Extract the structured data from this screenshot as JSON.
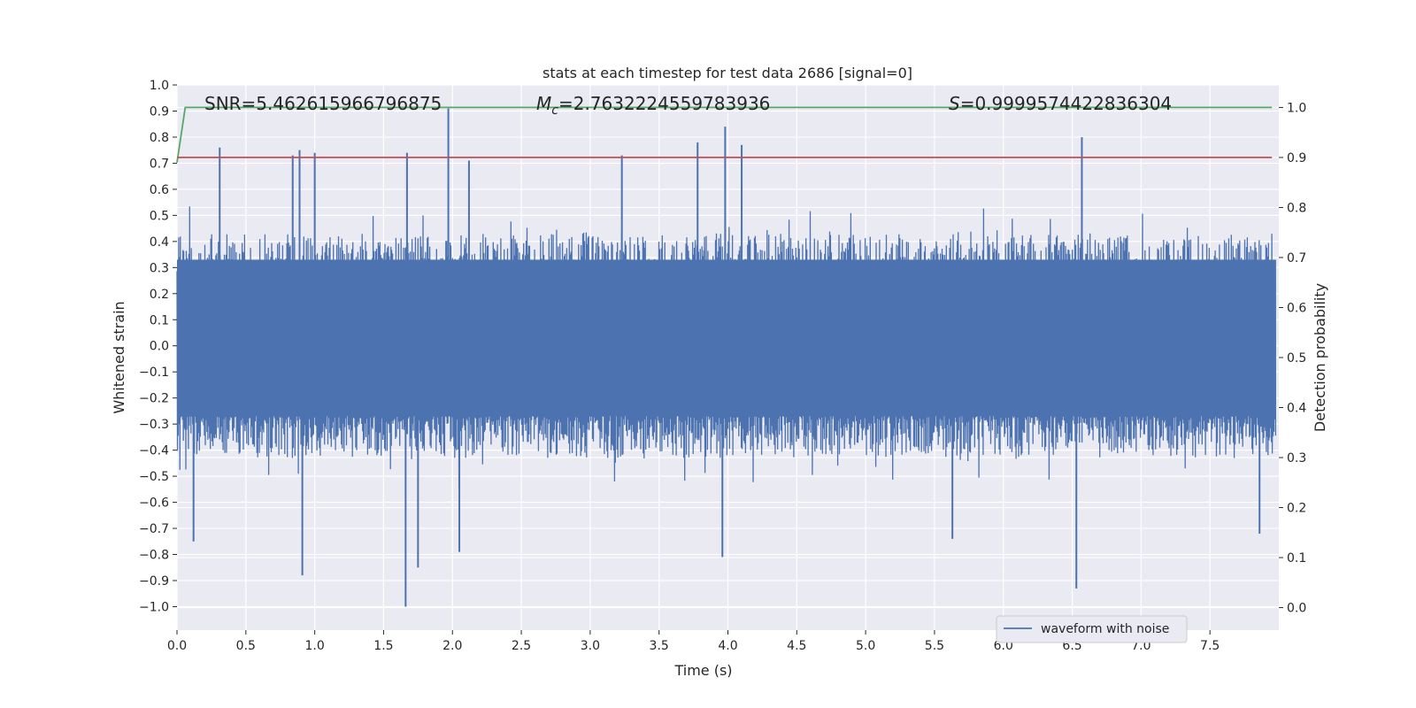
{
  "chart_data": {
    "type": "line",
    "title": "stats at each timestep for test data 2686 [signal=0]",
    "xlabel": "Time (s)",
    "ylabel": "Whitened strain",
    "y2label": "Detection probability",
    "xlim": [
      0.0,
      8.0
    ],
    "ylim": [
      -1.09,
      1.0
    ],
    "y2lim": [
      -0.045,
      1.045
    ],
    "x_ticks": [
      0.0,
      0.5,
      1.0,
      1.5,
      2.0,
      2.5,
      3.0,
      3.5,
      4.0,
      4.5,
      5.0,
      5.5,
      6.0,
      6.5,
      7.0,
      7.5
    ],
    "x_tick_labels": [
      "0.0",
      "0.5",
      "1.0",
      "1.5",
      "2.0",
      "2.5",
      "3.0",
      "3.5",
      "4.0",
      "4.5",
      "5.0",
      "5.5",
      "6.0",
      "6.5",
      "7.0",
      "7.5"
    ],
    "y_ticks": [
      1.0,
      0.9,
      0.8,
      0.7,
      0.6,
      0.5,
      0.4,
      0.3,
      0.2,
      0.1,
      0.0,
      -0.1,
      -0.2,
      -0.3,
      -0.4,
      -0.5,
      -0.6,
      -0.7,
      -0.8,
      -0.9,
      -1.0
    ],
    "y_tick_labels": [
      "1.0",
      "0.9",
      "0.8",
      "0.7",
      "0.6",
      "0.5",
      "0.4",
      "0.3",
      "0.2",
      "0.1",
      "0.0",
      "−0.1",
      "−0.2",
      "−0.3",
      "−0.4",
      "−0.5",
      "−0.6",
      "−0.7",
      "−0.8",
      "−0.9",
      "−1.0"
    ],
    "y2_ticks": [
      1.0,
      0.9,
      0.8,
      0.7,
      0.6,
      0.5,
      0.4,
      0.3,
      0.2,
      0.1,
      0.0
    ],
    "y2_tick_labels": [
      "1.0",
      "0.9",
      "0.8",
      "0.7",
      "0.6",
      "0.5",
      "0.4",
      "0.3",
      "0.2",
      "0.1",
      "0.0"
    ],
    "grid": true,
    "annotations": {
      "snr": "SNR=5.462615966796875",
      "mc_symbol": "M",
      "mc_sub": "c",
      "mc_value": "=2.7632224559783936",
      "s_symbol": "S",
      "s_value": "=0.9999574422836304"
    },
    "legend": {
      "label": "waveform with noise",
      "loc": "lower-right"
    },
    "series": [
      {
        "name": "waveform with noise",
        "axis": "left",
        "color": "#4c72b0",
        "kind": "noise",
        "core_band": [
          -0.23,
          0.33
        ],
        "typical_peaks": [
          0.45,
          -0.45
        ],
        "spikes": [
          {
            "x": 0.31,
            "y": 0.76
          },
          {
            "x": 0.84,
            "y": 0.73
          },
          {
            "x": 0.89,
            "y": 0.75
          },
          {
            "x": 1.0,
            "y": 0.74
          },
          {
            "x": 1.67,
            "y": 0.74
          },
          {
            "x": 1.97,
            "y": 0.91
          },
          {
            "x": 2.12,
            "y": 0.71
          },
          {
            "x": 3.23,
            "y": 0.73
          },
          {
            "x": 3.78,
            "y": 0.78
          },
          {
            "x": 3.98,
            "y": 0.84
          },
          {
            "x": 4.1,
            "y": 0.77
          },
          {
            "x": 6.57,
            "y": 0.8
          },
          {
            "x": 0.12,
            "y": -0.75
          },
          {
            "x": 0.91,
            "y": -0.88
          },
          {
            "x": 1.66,
            "y": -1.0
          },
          {
            "x": 1.75,
            "y": -0.85
          },
          {
            "x": 2.05,
            "y": -0.79
          },
          {
            "x": 3.96,
            "y": -0.81
          },
          {
            "x": 5.63,
            "y": -0.74
          },
          {
            "x": 6.53,
            "y": -0.93
          },
          {
            "x": 7.86,
            "y": -0.72
          }
        ]
      },
      {
        "name": "detection probability",
        "axis": "right",
        "color": "#55a868",
        "x": [
          0.0,
          0.06,
          0.1,
          7.95
        ],
        "y": [
          0.89,
          1.0,
          1.0,
          1.0
        ]
      },
      {
        "name": "threshold",
        "axis": "right",
        "color": "#c44e52",
        "x": [
          0.0,
          7.95
        ],
        "y": [
          0.9,
          0.9
        ]
      }
    ]
  }
}
